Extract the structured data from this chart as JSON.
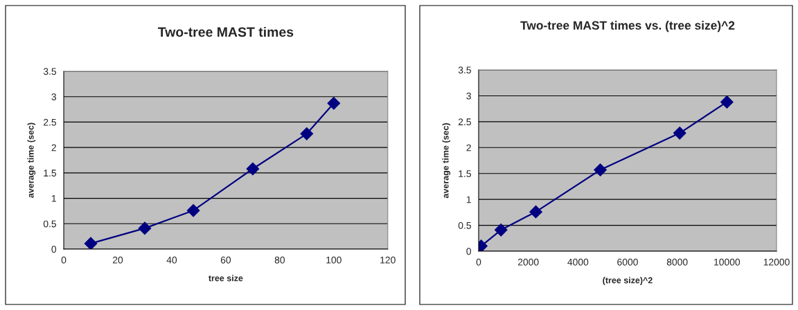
{
  "chart_data": [
    {
      "type": "line",
      "title": "Two-tree MAST times",
      "xlabel": "tree size",
      "ylabel": "average time (sec)",
      "x": [
        10,
        30,
        48,
        70,
        90,
        100
      ],
      "series": [
        {
          "color": "#000080",
          "values": [
            0.11,
            0.41,
            0.76,
            1.58,
            2.27,
            2.87
          ]
        }
      ],
      "xlim": [
        0,
        120
      ],
      "xticks": [
        0,
        20,
        40,
        60,
        80,
        100,
        120
      ],
      "ylim": [
        0,
        3.5
      ],
      "yticks": [
        0,
        0.5,
        1,
        1.5,
        2,
        2.5,
        3,
        3.5
      ],
      "grid": "y",
      "marker": "diamond",
      "line_style": "solid"
    },
    {
      "type": "line",
      "title": "Two-tree MAST times vs. (tree size)^2",
      "xlabel": "(tree size)^2",
      "ylabel": "average time (sec)",
      "x": [
        100,
        900,
        2304,
        4900,
        8100,
        10000
      ],
      "series": [
        {
          "color": "#000080",
          "values": [
            0.1,
            0.41,
            0.76,
            1.57,
            2.28,
            2.88
          ]
        }
      ],
      "xlim": [
        0,
        12000
      ],
      "xticks": [
        0,
        2000,
        4000,
        6000,
        8000,
        10000,
        12000
      ],
      "ylim": [
        0,
        3.5
      ],
      "yticks": [
        0,
        0.5,
        1,
        1.5,
        2,
        2.5,
        3,
        3.5
      ],
      "grid": "y",
      "marker": "diamond",
      "line_style": "solid"
    }
  ]
}
